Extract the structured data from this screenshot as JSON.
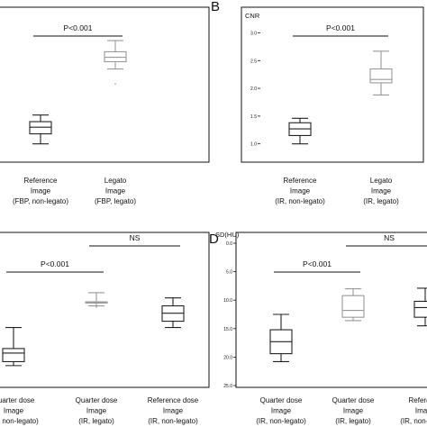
{
  "chart_data": [
    {
      "type": "box",
      "panel": "A",
      "panel_label": "",
      "ylabel": "",
      "ylim": [
        0.8,
        3.3
      ],
      "yticks": [],
      "annotations": [
        {
          "text": "P<0.001",
          "between": [
            0,
            1
          ]
        }
      ],
      "categories": [
        {
          "lines": [
            "Reference",
            "Image",
            "(FBP, non-legato)"
          ],
          "stroke": "#222222"
        },
        {
          "lines": [
            "Legato",
            "Image",
            "(FBP, legato)"
          ],
          "stroke": "#999999"
        }
      ],
      "boxes": [
        {
          "min": 1.0,
          "q1": 1.18,
          "median": 1.3,
          "q3": 1.4,
          "max": 1.52,
          "outliers": []
        },
        {
          "min": 2.35,
          "q1": 2.48,
          "median": 2.56,
          "q3": 2.66,
          "max": 2.86,
          "outliers": [
            2.08
          ]
        }
      ]
    },
    {
      "type": "box",
      "panel": "B",
      "panel_label": "B",
      "ylabel": "CNR",
      "ylim": [
        0.8,
        3.3
      ],
      "yticks": [
        "3.0",
        "2.5",
        "2.0",
        "1.5",
        "1.0"
      ],
      "annotations": [
        {
          "text": "P<0.001",
          "between": [
            0,
            1
          ]
        }
      ],
      "categories": [
        {
          "lines": [
            "Reference",
            "Image",
            "(IR, non-legato)"
          ],
          "stroke": "#222222"
        },
        {
          "lines": [
            "Legato",
            "Image",
            "(IR, legato)"
          ],
          "stroke": "#999999"
        }
      ],
      "boxes": [
        {
          "min": 1.0,
          "q1": 1.15,
          "median": 1.27,
          "q3": 1.38,
          "max": 1.46,
          "outliers": []
        },
        {
          "min": 1.88,
          "q1": 2.1,
          "median": 2.16,
          "q3": 2.35,
          "max": 2.67,
          "outliers": []
        }
      ]
    },
    {
      "type": "box",
      "panel": "C",
      "panel_label": "",
      "ylabel": "",
      "ylim": [
        0,
        25
      ],
      "inverted": true,
      "yticks": [],
      "annotations": [
        {
          "text": "P<0.001",
          "between": [
            0,
            1
          ]
        },
        {
          "text": "NS",
          "between": [
            1,
            2
          ]
        }
      ],
      "categories": [
        {
          "lines": [
            "Quarter dose",
            "Image",
            "(IR, non-legato)"
          ],
          "stroke": "#222222"
        },
        {
          "lines": [
            "Quarter dose",
            "Image",
            "(IR, legato)"
          ],
          "stroke": "#999999"
        },
        {
          "lines": [
            "Reference dose",
            "Image",
            "(IR, non-legato)"
          ],
          "stroke": "#222222"
        }
      ],
      "boxes": [
        {
          "min": 14.8,
          "q1": 18.5,
          "median": 19.3,
          "q3": 20.8,
          "max": 21.5,
          "outliers": []
        },
        {
          "min": 8.7,
          "q1": 10.3,
          "median": 10.4,
          "q3": 10.5,
          "max": 11.0,
          "outliers": [
            11.2
          ]
        },
        {
          "min": 9.6,
          "q1": 11.0,
          "median": 12.3,
          "q3": 13.7,
          "max": 14.8,
          "outliers": []
        }
      ]
    },
    {
      "type": "box",
      "panel": "D",
      "panel_label": "D",
      "ylabel": "SD(HU)",
      "ylim": [
        0,
        25
      ],
      "inverted": true,
      "yticks": [
        "0.0",
        "5.0",
        "10.0",
        "15.0",
        "20.0",
        "25.0"
      ],
      "annotations": [
        {
          "text": "P<0.001",
          "between": [
            0,
            1
          ]
        },
        {
          "text": "NS",
          "between": [
            1,
            2
          ]
        }
      ],
      "categories": [
        {
          "lines": [
            "Quarter dose",
            "Image",
            "(IR, non-legato)"
          ],
          "stroke": "#222222"
        },
        {
          "lines": [
            "Quarter dose",
            "Image",
            "(IR, legato)"
          ],
          "stroke": "#999999"
        },
        {
          "lines": [
            "Reference",
            "Image",
            "(IR, non-legato)"
          ],
          "stroke": "#222222"
        }
      ],
      "boxes": [
        {
          "min": 12.5,
          "q1": 15.2,
          "median": 17.3,
          "q3": 19.4,
          "max": 20.8,
          "outliers": []
        },
        {
          "min": 8.0,
          "q1": 9.2,
          "median": 11.8,
          "q3": 13.0,
          "max": 13.6,
          "outliers": []
        },
        {
          "min": 7.9,
          "q1": 10.2,
          "median": 11.3,
          "q3": 13.0,
          "max": 14.5,
          "outliers": []
        }
      ]
    }
  ]
}
